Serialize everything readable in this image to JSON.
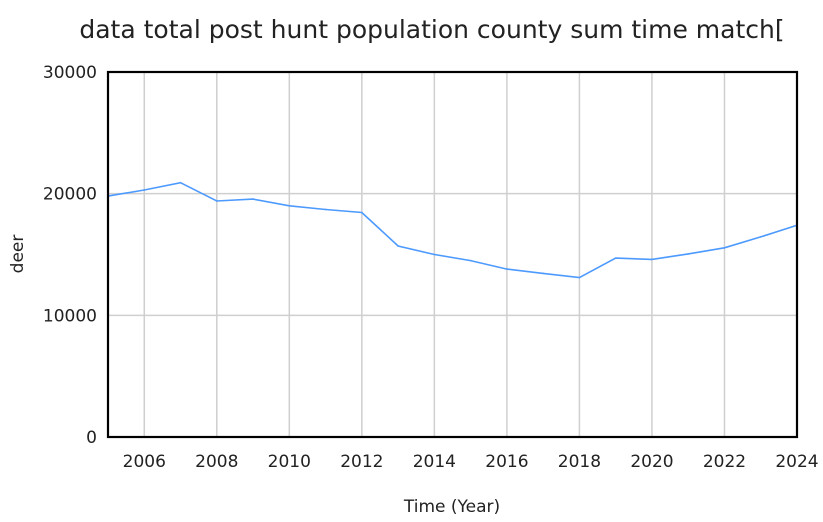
{
  "chart_data": {
    "type": "line",
    "title": "data total post hunt population county sum time match[",
    "xlabel": "Time (Year)",
    "ylabel": "deer",
    "xlim": [
      2005,
      2024
    ],
    "ylim": [
      0,
      30000
    ],
    "x_ticks": [
      2006,
      2008,
      2010,
      2012,
      2014,
      2016,
      2018,
      2020,
      2022,
      2024
    ],
    "y_ticks": [
      0,
      10000,
      20000,
      30000
    ],
    "grid": true,
    "legend": "none",
    "series_color": "#4d9aff",
    "series": [
      {
        "x": [
          2005,
          2006,
          2007,
          2008,
          2009,
          2010,
          2011,
          2012,
          2013,
          2014,
          2015,
          2016,
          2017,
          2018,
          2019,
          2020,
          2021,
          2022,
          2023,
          2024
        ],
        "values": [
          19800,
          20300,
          20900,
          19400,
          19550,
          19000,
          18700,
          18450,
          15700,
          15000,
          14500,
          13800,
          13450,
          13100,
          14700,
          14600,
          15050,
          15550,
          16450,
          17400
        ]
      }
    ]
  }
}
